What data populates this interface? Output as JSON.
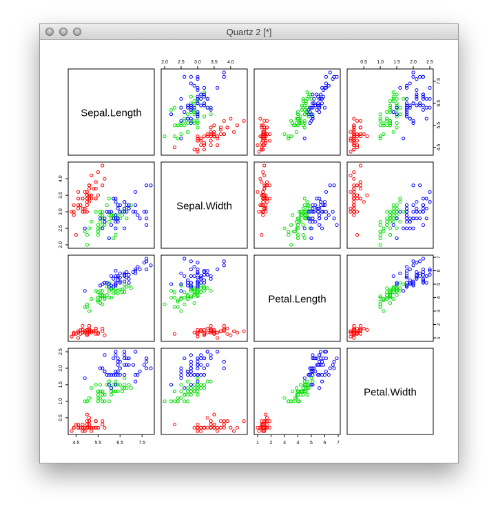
{
  "window": {
    "title": "Quartz 2 [*]"
  },
  "chart_data": {
    "type": "scatter",
    "subtype": "scatterplot-matrix",
    "variables": [
      "Sepal.Length",
      "Sepal.Width",
      "Petal.Length",
      "Petal.Width"
    ],
    "ranges": [
      [
        4.3,
        7.9
      ],
      [
        2.0,
        4.4
      ],
      [
        1.0,
        6.9
      ],
      [
        0.1,
        2.5
      ]
    ],
    "ticks": [
      [
        "4.5",
        "5.5",
        "6.5",
        "7.5"
      ],
      [
        "2.0",
        "2.5",
        "3.0",
        "3.5",
        "4.0"
      ],
      [
        "1",
        "2",
        "3",
        "4",
        "5",
        "6",
        "7"
      ],
      [
        "0.5",
        "1.0",
        "1.5",
        "2.0",
        "2.5"
      ]
    ],
    "axes": {
      "bottom": [
        0,
        2
      ],
      "left": [
        1,
        3
      ],
      "top": [
        1,
        3
      ],
      "right": [
        0,
        2
      ]
    },
    "colors": [
      "#ff0000",
      "#00dd00",
      "#0000ff"
    ],
    "series": [
      {
        "values": [
          [
            5.1,
            3.5,
            1.4,
            0.2
          ],
          [
            4.9,
            3.0,
            1.4,
            0.2
          ],
          [
            4.7,
            3.2,
            1.3,
            0.2
          ],
          [
            4.6,
            3.1,
            1.5,
            0.2
          ],
          [
            5.0,
            3.6,
            1.4,
            0.2
          ],
          [
            5.4,
            3.9,
            1.7,
            0.4
          ],
          [
            4.6,
            3.4,
            1.4,
            0.3
          ],
          [
            5.0,
            3.4,
            1.5,
            0.2
          ],
          [
            4.4,
            2.9,
            1.4,
            0.2
          ],
          [
            4.9,
            3.1,
            1.5,
            0.1
          ],
          [
            5.4,
            3.7,
            1.5,
            0.2
          ],
          [
            4.8,
            3.4,
            1.6,
            0.2
          ],
          [
            4.8,
            3.0,
            1.4,
            0.1
          ],
          [
            4.3,
            3.0,
            1.1,
            0.1
          ],
          [
            5.8,
            4.0,
            1.2,
            0.2
          ],
          [
            5.7,
            4.4,
            1.5,
            0.4
          ],
          [
            5.4,
            3.9,
            1.3,
            0.4
          ],
          [
            5.1,
            3.5,
            1.4,
            0.3
          ],
          [
            5.7,
            3.8,
            1.7,
            0.3
          ],
          [
            5.1,
            3.8,
            1.5,
            0.3
          ],
          [
            5.4,
            3.4,
            1.7,
            0.2
          ],
          [
            5.1,
            3.7,
            1.5,
            0.4
          ],
          [
            4.6,
            3.6,
            1.0,
            0.2
          ],
          [
            5.1,
            3.3,
            1.7,
            0.5
          ],
          [
            4.8,
            3.4,
            1.9,
            0.2
          ],
          [
            5.0,
            3.0,
            1.6,
            0.2
          ],
          [
            5.0,
            3.4,
            1.6,
            0.4
          ],
          [
            5.2,
            3.5,
            1.5,
            0.2
          ],
          [
            5.2,
            3.4,
            1.4,
            0.2
          ],
          [
            4.7,
            3.2,
            1.6,
            0.2
          ],
          [
            4.8,
            3.1,
            1.6,
            0.2
          ],
          [
            5.4,
            3.4,
            1.5,
            0.4
          ],
          [
            5.2,
            4.1,
            1.5,
            0.1
          ],
          [
            5.5,
            4.2,
            1.4,
            0.2
          ],
          [
            4.9,
            3.1,
            1.5,
            0.2
          ],
          [
            5.0,
            3.2,
            1.2,
            0.2
          ],
          [
            5.5,
            3.5,
            1.3,
            0.2
          ],
          [
            4.9,
            3.6,
            1.4,
            0.1
          ],
          [
            4.4,
            3.0,
            1.3,
            0.2
          ],
          [
            5.1,
            3.4,
            1.5,
            0.2
          ],
          [
            5.0,
            3.5,
            1.3,
            0.3
          ],
          [
            4.5,
            2.3,
            1.3,
            0.3
          ],
          [
            4.4,
            3.2,
            1.3,
            0.2
          ],
          [
            5.0,
            3.5,
            1.6,
            0.6
          ],
          [
            5.1,
            3.8,
            1.9,
            0.4
          ],
          [
            4.8,
            3.0,
            1.4,
            0.3
          ],
          [
            5.1,
            3.8,
            1.6,
            0.2
          ],
          [
            4.6,
            3.2,
            1.4,
            0.2
          ],
          [
            5.3,
            3.7,
            1.5,
            0.2
          ],
          [
            5.0,
            3.3,
            1.4,
            0.2
          ]
        ]
      },
      {
        "values": [
          [
            7.0,
            3.2,
            4.7,
            1.4
          ],
          [
            6.4,
            3.2,
            4.5,
            1.5
          ],
          [
            6.9,
            3.1,
            4.9,
            1.5
          ],
          [
            5.5,
            2.3,
            4.0,
            1.3
          ],
          [
            6.5,
            2.8,
            4.6,
            1.5
          ],
          [
            5.7,
            2.8,
            4.5,
            1.3
          ],
          [
            6.3,
            3.3,
            4.7,
            1.6
          ],
          [
            4.9,
            2.4,
            3.3,
            1.0
          ],
          [
            6.6,
            2.9,
            4.6,
            1.3
          ],
          [
            5.2,
            2.7,
            3.9,
            1.4
          ],
          [
            5.0,
            2.0,
            3.5,
            1.0
          ],
          [
            5.9,
            3.0,
            4.2,
            1.5
          ],
          [
            6.0,
            2.2,
            4.0,
            1.0
          ],
          [
            6.1,
            2.9,
            4.7,
            1.4
          ],
          [
            5.6,
            2.9,
            3.6,
            1.3
          ],
          [
            6.7,
            3.1,
            4.4,
            1.4
          ],
          [
            5.6,
            3.0,
            4.5,
            1.5
          ],
          [
            5.8,
            2.7,
            4.1,
            1.0
          ],
          [
            6.2,
            2.2,
            4.5,
            1.5
          ],
          [
            5.6,
            2.5,
            3.9,
            1.1
          ],
          [
            5.9,
            3.2,
            4.8,
            1.8
          ],
          [
            6.1,
            2.8,
            4.0,
            1.3
          ],
          [
            6.3,
            2.5,
            4.9,
            1.5
          ],
          [
            6.1,
            2.8,
            4.7,
            1.2
          ],
          [
            6.4,
            2.9,
            4.3,
            1.3
          ],
          [
            6.6,
            3.0,
            4.4,
            1.4
          ],
          [
            6.8,
            2.8,
            4.8,
            1.4
          ],
          [
            6.7,
            3.0,
            5.0,
            1.7
          ],
          [
            6.0,
            2.9,
            4.5,
            1.5
          ],
          [
            5.7,
            2.6,
            3.5,
            1.0
          ],
          [
            5.5,
            2.4,
            3.8,
            1.1
          ],
          [
            5.5,
            2.4,
            3.7,
            1.0
          ],
          [
            5.8,
            2.7,
            3.9,
            1.2
          ],
          [
            6.0,
            2.7,
            5.1,
            1.6
          ],
          [
            5.4,
            3.0,
            4.5,
            1.5
          ],
          [
            6.0,
            3.4,
            4.5,
            1.6
          ],
          [
            6.7,
            3.1,
            4.7,
            1.5
          ],
          [
            6.3,
            2.3,
            4.4,
            1.3
          ],
          [
            5.6,
            3.0,
            4.1,
            1.3
          ],
          [
            5.5,
            2.5,
            4.0,
            1.3
          ],
          [
            5.5,
            2.6,
            4.4,
            1.2
          ],
          [
            6.1,
            3.0,
            4.6,
            1.4
          ],
          [
            5.8,
            2.6,
            4.0,
            1.2
          ],
          [
            5.0,
            2.3,
            3.3,
            1.0
          ],
          [
            5.6,
            2.7,
            4.2,
            1.3
          ],
          [
            5.7,
            3.0,
            4.2,
            1.2
          ],
          [
            5.7,
            2.9,
            4.2,
            1.3
          ],
          [
            6.2,
            2.9,
            4.3,
            1.3
          ],
          [
            5.1,
            2.5,
            3.0,
            1.1
          ],
          [
            5.7,
            2.8,
            4.1,
            1.3
          ]
        ]
      },
      {
        "values": [
          [
            6.3,
            3.3,
            6.0,
            2.5
          ],
          [
            5.8,
            2.7,
            5.1,
            1.9
          ],
          [
            7.1,
            3.0,
            5.9,
            2.1
          ],
          [
            6.3,
            2.9,
            5.6,
            1.8
          ],
          [
            6.5,
            3.0,
            5.8,
            2.2
          ],
          [
            7.6,
            3.0,
            6.6,
            2.1
          ],
          [
            4.9,
            2.5,
            4.5,
            1.7
          ],
          [
            7.3,
            2.9,
            6.3,
            1.8
          ],
          [
            6.7,
            2.5,
            5.8,
            1.8
          ],
          [
            7.2,
            3.6,
            6.1,
            2.5
          ],
          [
            6.5,
            3.2,
            5.1,
            2.0
          ],
          [
            6.4,
            2.7,
            5.3,
            1.9
          ],
          [
            6.8,
            3.0,
            5.5,
            2.1
          ],
          [
            5.7,
            2.5,
            5.0,
            2.0
          ],
          [
            5.8,
            2.8,
            5.1,
            2.4
          ],
          [
            6.4,
            3.2,
            5.3,
            2.3
          ],
          [
            6.5,
            3.0,
            5.5,
            1.8
          ],
          [
            7.7,
            3.8,
            6.7,
            2.2
          ],
          [
            7.7,
            2.6,
            6.9,
            2.3
          ],
          [
            6.0,
            2.2,
            5.0,
            1.5
          ],
          [
            6.9,
            3.2,
            5.7,
            2.3
          ],
          [
            5.6,
            2.8,
            4.9,
            2.0
          ],
          [
            7.7,
            2.8,
            6.7,
            2.0
          ],
          [
            6.3,
            2.7,
            4.9,
            1.8
          ],
          [
            6.7,
            3.3,
            5.7,
            2.1
          ],
          [
            7.2,
            3.2,
            6.0,
            1.8
          ],
          [
            6.2,
            2.8,
            4.8,
            1.8
          ],
          [
            6.1,
            3.0,
            4.9,
            1.8
          ],
          [
            6.4,
            2.8,
            5.6,
            2.1
          ],
          [
            7.2,
            3.0,
            5.8,
            1.6
          ],
          [
            7.4,
            2.8,
            6.1,
            1.9
          ],
          [
            7.9,
            3.8,
            6.4,
            2.0
          ],
          [
            6.4,
            2.8,
            5.6,
            2.2
          ],
          [
            6.3,
            2.8,
            5.1,
            1.5
          ],
          [
            6.1,
            2.6,
            5.6,
            1.4
          ],
          [
            7.7,
            3.0,
            6.1,
            2.3
          ],
          [
            6.3,
            3.4,
            5.6,
            2.4
          ],
          [
            6.4,
            3.1,
            5.5,
            1.8
          ],
          [
            6.0,
            3.0,
            4.8,
            1.8
          ],
          [
            6.9,
            3.1,
            5.4,
            2.1
          ],
          [
            6.7,
            3.1,
            5.6,
            2.4
          ],
          [
            6.9,
            3.1,
            5.1,
            2.3
          ],
          [
            5.8,
            2.7,
            5.1,
            1.9
          ],
          [
            6.8,
            3.2,
            5.9,
            2.3
          ],
          [
            6.7,
            3.3,
            5.7,
            2.5
          ],
          [
            6.7,
            3.0,
            5.2,
            2.3
          ],
          [
            6.3,
            2.5,
            5.0,
            1.9
          ],
          [
            6.5,
            3.0,
            5.2,
            2.0
          ],
          [
            6.2,
            3.4,
            5.4,
            2.3
          ],
          [
            5.9,
            3.0,
            5.1,
            1.8
          ]
        ]
      }
    ]
  }
}
